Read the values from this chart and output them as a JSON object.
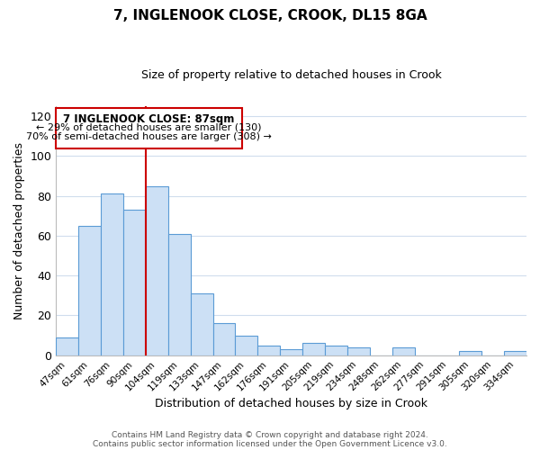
{
  "title": "7, INGLENOOK CLOSE, CROOK, DL15 8GA",
  "subtitle": "Size of property relative to detached houses in Crook",
  "xlabel": "Distribution of detached houses by size in Crook",
  "ylabel": "Number of detached properties",
  "bar_labels": [
    "47sqm",
    "61sqm",
    "76sqm",
    "90sqm",
    "104sqm",
    "119sqm",
    "133sqm",
    "147sqm",
    "162sqm",
    "176sqm",
    "191sqm",
    "205sqm",
    "219sqm",
    "234sqm",
    "248sqm",
    "262sqm",
    "277sqm",
    "291sqm",
    "305sqm",
    "320sqm",
    "334sqm"
  ],
  "bar_values": [
    9,
    65,
    81,
    73,
    85,
    61,
    31,
    16,
    10,
    5,
    3,
    6,
    5,
    4,
    0,
    4,
    0,
    0,
    2,
    0,
    2
  ],
  "bar_color": "#cce0f5",
  "bar_edge_color": "#5b9bd5",
  "vline_color": "#cc0000",
  "vline_index": 3.5,
  "ylim": [
    0,
    125
  ],
  "yticks": [
    0,
    20,
    40,
    60,
    80,
    100,
    120
  ],
  "annotation_title": "7 INGLENOOK CLOSE: 87sqm",
  "annotation_line1": "← 29% of detached houses are smaller (130)",
  "annotation_line2": "70% of semi-detached houses are larger (308) →",
  "annotation_box_color": "#ffffff",
  "annotation_border_color": "#cc0000",
  "footer1": "Contains HM Land Registry data © Crown copyright and database right 2024.",
  "footer2": "Contains public sector information licensed under the Open Government Licence v3.0.",
  "background_color": "#ffffff",
  "grid_color": "#d0dded"
}
